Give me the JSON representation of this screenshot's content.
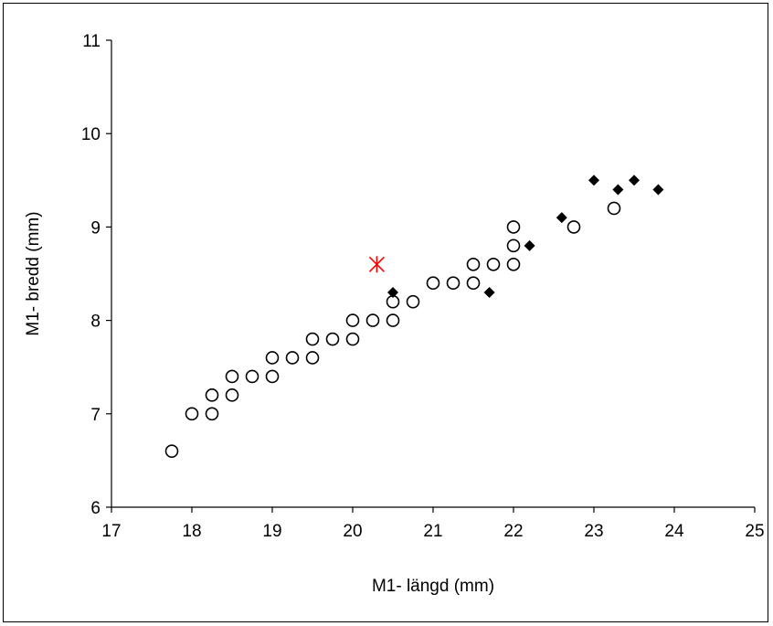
{
  "chart_data": {
    "type": "scatter",
    "title": "",
    "xlabel": "M1- längd (mm)",
    "ylabel": "M1- bredd (mm)",
    "xlim": [
      17,
      25
    ],
    "ylim": [
      6,
      11
    ],
    "xticks": [
      "17",
      "18",
      "19",
      "20",
      "21",
      "22",
      "23",
      "24",
      "25"
    ],
    "yticks": [
      "6",
      "7",
      "8",
      "9",
      "10",
      "11"
    ],
    "grid": false,
    "legend": "none",
    "colors": {
      "axis": "#000000",
      "star": "#ff0000",
      "open": "#000000",
      "diamond": "#000000"
    },
    "series": [
      {
        "marker": "open-circle",
        "points": [
          [
            17.75,
            6.6
          ],
          [
            18.0,
            7.0
          ],
          [
            18.25,
            7.0
          ],
          [
            18.25,
            7.2
          ],
          [
            18.5,
            7.2
          ],
          [
            18.5,
            7.4
          ],
          [
            18.75,
            7.4
          ],
          [
            19.0,
            7.4
          ],
          [
            19.0,
            7.6
          ],
          [
            19.25,
            7.6
          ],
          [
            19.5,
            7.6
          ],
          [
            19.5,
            7.8
          ],
          [
            19.75,
            7.8
          ],
          [
            20.0,
            7.8
          ],
          [
            20.0,
            8.0
          ],
          [
            20.25,
            8.0
          ],
          [
            20.5,
            8.0
          ],
          [
            20.5,
            8.2
          ],
          [
            20.75,
            8.2
          ],
          [
            21.0,
            8.4
          ],
          [
            21.25,
            8.4
          ],
          [
            21.5,
            8.4
          ],
          [
            21.5,
            8.6
          ],
          [
            21.75,
            8.6
          ],
          [
            22.0,
            8.6
          ],
          [
            22.0,
            8.8
          ],
          [
            22.0,
            9.0
          ],
          [
            22.75,
            9.0
          ],
          [
            23.25,
            9.2
          ]
        ]
      },
      {
        "marker": "filled-diamond",
        "points": [
          [
            20.5,
            8.3
          ],
          [
            21.7,
            8.3
          ],
          [
            22.2,
            8.8
          ],
          [
            22.6,
            9.1
          ],
          [
            23.0,
            9.5
          ],
          [
            23.3,
            9.4
          ],
          [
            23.5,
            9.5
          ],
          [
            23.8,
            9.4
          ]
        ]
      },
      {
        "marker": "red-asterisk",
        "points": [
          [
            20.3,
            8.6
          ]
        ]
      }
    ]
  }
}
